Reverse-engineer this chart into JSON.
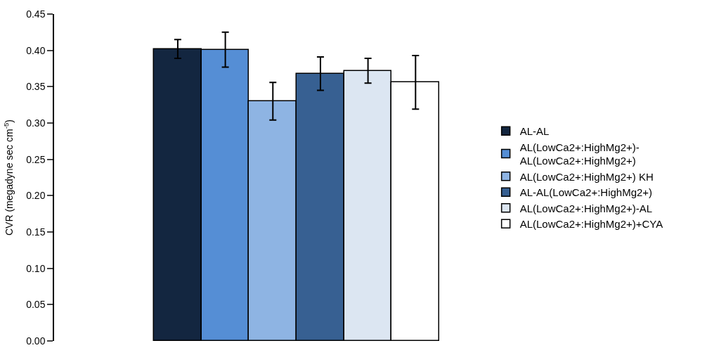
{
  "chart_data": {
    "type": "bar",
    "ylabel": "CVR (megadyne sec cm$^{-5}$)",
    "categories": [
      null
    ],
    "series": [
      {
        "name": "AL-AL",
        "color": "#132640",
        "values": [
          0.402
        ],
        "errors": [
          0.013
        ]
      },
      {
        "name": "AL(LowCa2+:HighMg2+)-AL(LowCa2+:HighMg2+)",
        "color": "#558ed5",
        "values": [
          0.401
        ],
        "errors": [
          0.024
        ]
      },
      {
        "name": "AL(LowCa2+:HighMg2+) KH",
        "color": "#8eb4e3",
        "values": [
          0.33
        ],
        "errors": [
          0.026
        ]
      },
      {
        "name": "AL-AL(LowCa2+:HighMg2+)",
        "color": "#376092",
        "values": [
          0.368
        ],
        "errors": [
          0.023
        ]
      },
      {
        "name": "AL(LowCa2+:HighMg2+)-AL",
        "color": "#dce6f2",
        "values": [
          0.372
        ],
        "errors": [
          0.017
        ]
      },
      {
        "name": "AL(LowCa2+:HighMg2+)+CYA",
        "color": "#ffffff",
        "values": [
          0.356
        ],
        "errors": [
          0.037
        ]
      }
    ],
    "ylim": [
      0,
      0.45
    ],
    "yticks": [
      {
        "value": 0,
        "label": "0.00"
      },
      {
        "value": 0.05,
        "label": "0.05"
      },
      {
        "value": 0.1,
        "label": "0.10"
      },
      {
        "value": 0.15,
        "label": "0.15"
      },
      {
        "value": 0.2,
        "label": "0.20"
      },
      {
        "value": 0.25,
        "label": "0.25"
      },
      {
        "value": 0.3,
        "label": "0.30"
      },
      {
        "value": 0.35,
        "label": "0.35"
      },
      {
        "value": 0.4,
        "label": "0.40"
      },
      {
        "value": 0.45,
        "label": "0.45"
      }
    ],
    "legend": "right",
    "tick_labels": "y"
  }
}
